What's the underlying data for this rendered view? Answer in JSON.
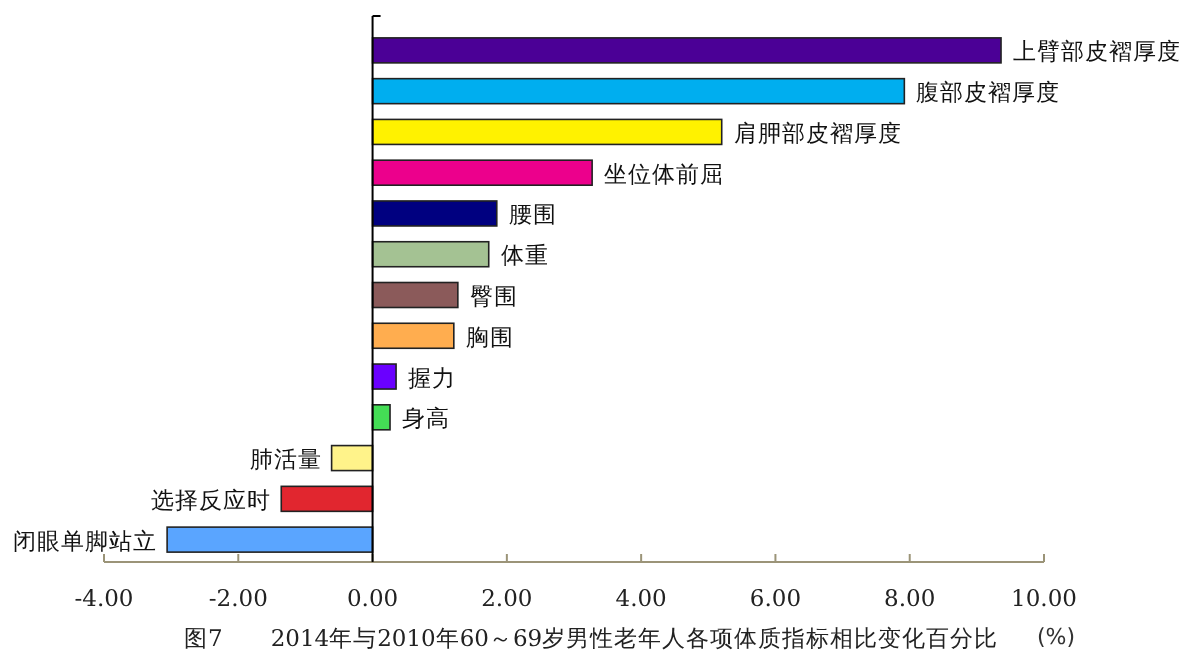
{
  "chart_data": {
    "type": "bar",
    "orientation": "horizontal",
    "title": "图7　　2014年与2010年60～69岁男性老年人各项体质指标相比变化百分比",
    "xlabel": "(%)",
    "categories": [
      "上臂部皮褶厚度",
      "腹部皮褶厚度",
      "肩胛部皮褶厚度",
      "坐位体前屈",
      "腰围",
      "体重",
      "臀围",
      "胸围",
      "握力",
      "身高",
      "肺活量",
      "选择反应时",
      "闭眼单脚站立"
    ],
    "values": [
      9.36,
      7.92,
      5.2,
      3.27,
      1.85,
      1.73,
      1.27,
      1.21,
      0.35,
      0.26,
      -0.61,
      -1.36,
      -3.06
    ],
    "colors": [
      "#4b0096",
      "#00aeef",
      "#fff200",
      "#ec008c",
      "#000080",
      "#a4c293",
      "#8b5a5a",
      "#ffad4f",
      "#6a00ff",
      "#44dd55",
      "#fff38a",
      "#e1262f",
      "#5aa5ff"
    ],
    "xlim": [
      -4,
      10
    ],
    "xticks": [
      {
        "value": -4,
        "label": "-4.00"
      },
      {
        "value": -2,
        "label": "-2.00"
      },
      {
        "value": 0,
        "label": "0.00"
      },
      {
        "value": 2,
        "label": "2.00"
      },
      {
        "value": 4,
        "label": "4.00"
      },
      {
        "value": 6,
        "label": "6.00"
      },
      {
        "value": 8,
        "label": "8.00"
      },
      {
        "value": 10,
        "label": "10.00"
      }
    ],
    "grid": false
  }
}
